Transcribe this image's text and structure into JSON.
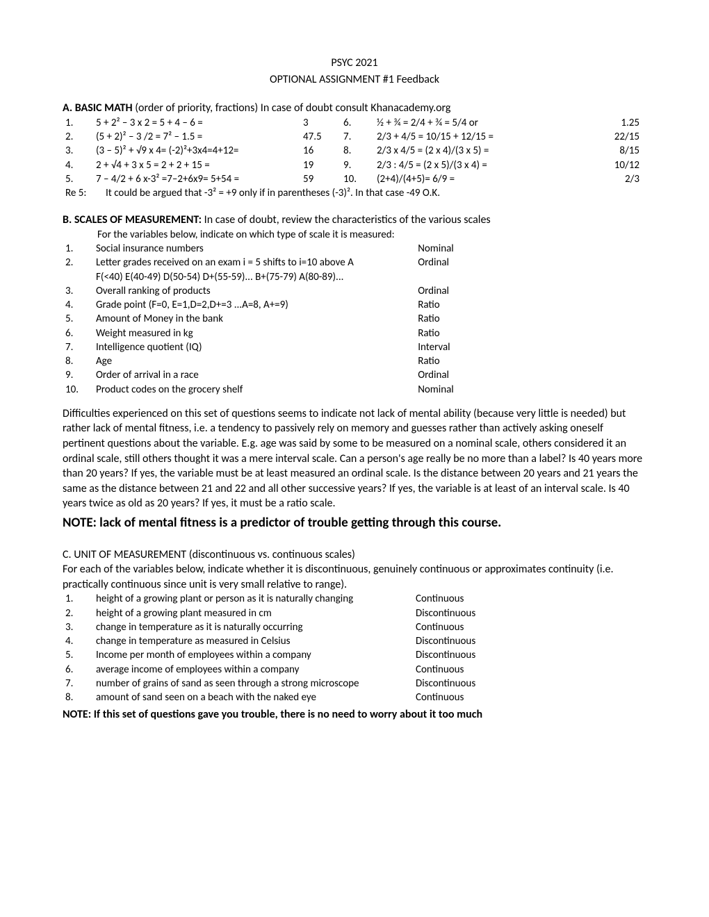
{
  "header": {
    "course": "PSYC 2021",
    "subtitle": "OPTIONAL ASSIGNMENT #1 Feedback"
  },
  "sectionA": {
    "heading_bold": "A. BASIC MATH",
    "heading_rest": " (order of priority, fractions) In case of doubt consult Khanacademy.org",
    "left": [
      {
        "n": "1.",
        "expr": "5 + 2² – 3 x 2        = 5 + 4 – 6 =",
        "ans": "3"
      },
      {
        "n": "2.",
        "expr": "(5 + 2)² – 3 /2        = 7² – 1.5   =",
        "ans": "47.5"
      },
      {
        "n": "3.",
        "expr": "(3 – 5)² + √9 x 4= (-2)²+3x4=4+12=",
        "ans": "16"
      },
      {
        "n": "4.",
        "expr": "2 + √4 + 3 x 5 = 2 + 2 + 15 =",
        "ans": "19"
      },
      {
        "n": "5.",
        "expr": "7 – 4/2 + 6 x-3² =7–2+6x9= 5+54 =",
        "ans": "59"
      }
    ],
    "right": [
      {
        "n": "6.",
        "expr": "½ + ¾     = 2/4 + ¾ = 5/4 or",
        "ans": "1.25"
      },
      {
        "n": "7.",
        "expr": "2/3 + 4/5 = 10/15 + 12/15 =",
        "ans": "22/15"
      },
      {
        "n": "8.",
        "expr": "2/3 x 4/5 = (2 x 4)/(3 x 5) =",
        "ans": "8/15"
      },
      {
        "n": "9.",
        "expr": "2/3 : 4/5 = (2 x 5)/(3 x 4) =",
        "ans": "10/12"
      },
      {
        "n": "10.",
        "expr": "(2+4)/(4+5)= 6/9 =",
        "ans": "2/3"
      }
    ],
    "re5_label": "Re 5:",
    "re5_text": "It could be argued that -3² = +9 only if in parentheses (-3)². In that case  -49 O.K."
  },
  "sectionB": {
    "heading_bold": "B. SCALES OF MEASUREMENT:",
    "heading_rest": " In case of doubt, review the characteristics of the various scales",
    "instr": "For the variables below, indicate on which type of scale it is measured:",
    "rows": [
      {
        "n": "1.",
        "desc": "Social insurance numbers",
        "scale": "Nominal"
      },
      {
        "n": "2.",
        "desc": "Letter grades received on an exam  i = 5 shifts to i=10 above A",
        "scale": "Ordinal"
      },
      {
        "n": "",
        "desc": "F(<40)    E(40-49) D(50-54) D+(55-59)... B+(75-79) A(80-89)...",
        "scale": ""
      },
      {
        "n": "3.",
        "desc": "Overall ranking of products",
        "scale": "Ordinal"
      },
      {
        "n": "4.",
        "desc": "Grade point (F=0, E=1,D=2,D+=3 ...A=8, A+=9)",
        "scale": "Ratio"
      },
      {
        "n": "5.",
        "desc": "Amount of Money in the bank",
        "scale": "Ratio"
      },
      {
        "n": "6.",
        "desc": "Weight measured in kg",
        "scale": "Ratio"
      },
      {
        "n": "7.",
        "desc": "Intelligence quotient (IQ)",
        "scale": "Interval"
      },
      {
        "n": "8.",
        "desc": "Age",
        "scale": "Ratio"
      },
      {
        "n": "9.",
        "desc": "Order of arrival in a race",
        "scale": "Ordinal"
      },
      {
        "n": "10.",
        "desc": "Product codes on the grocery shelf",
        "scale": "Nominal"
      }
    ],
    "paragraph": "Difficulties experienced on this set of questions seems to indicate not lack of mental ability (because very little is needed) but rather lack of mental fitness, i.e. a tendency to passively rely on memory and guesses rather than actively asking oneself pertinent questions about the variable. E.g. age was said by some to be measured on a nominal scale, others considered it an ordinal scale, still others thought it was a mere interval scale. Can a person's  age really be no more than a label? Is 40 years more than 20 years? If yes, the variable must be at least measured an ordinal scale. Is the distance between 20 years and 21 years the same as the distance between 21 and 22 and all other successive years? If yes, the variable is at least of an interval scale. Is 40 years twice as old as 20 years? If yes, it must be a ratio scale.",
    "note": "NOTE: lack of mental fitness is a predictor of trouble getting through this course."
  },
  "sectionC": {
    "heading": "C. UNIT OF MEASUREMENT (discontinuous vs. continuous scales)",
    "instr": "For each of the variables below, indicate whether it is discontinuous, genuinely continuous or approximates continuity (i.e. practically continuous since unit is very small relative to range).",
    "rows": [
      {
        "n": "1.",
        "desc": "height of a growing plant or person as it is naturally changing",
        "scale": "Continuous"
      },
      {
        "n": "2.",
        "desc": "height of a growing plant measured in cm",
        "scale": "Discontinuous"
      },
      {
        "n": "3.",
        "desc": "change in temperature as it is naturally occurring",
        "scale": "Continuous"
      },
      {
        "n": "4.",
        "desc": "change in temperature as measured in Celsius",
        "scale": "Discontinuous"
      },
      {
        "n": "5.",
        "desc": "Income per month of employees within a company",
        "scale": "Discontinuous"
      },
      {
        "n": "6.",
        "desc": "average income of employees within a company",
        "scale": "Continuous"
      },
      {
        "n": "7.",
        "desc": "number of grains of sand as seen through a strong microscope",
        "scale": "Discontinuous"
      },
      {
        "n": "8.",
        "desc": "amount of sand seen on a beach with the naked eye",
        "scale": "Continuous"
      }
    ],
    "note": "NOTE: If this set of questions gave you trouble, there is no need to worry about it too much"
  }
}
